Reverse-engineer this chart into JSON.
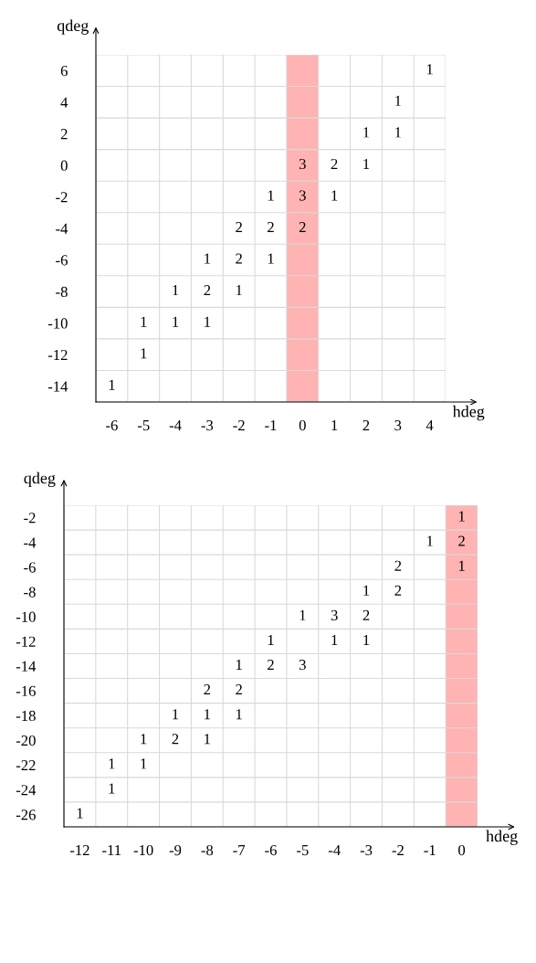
{
  "chart_data": [
    {
      "type": "heatmap",
      "xlabel": "hdeg",
      "ylabel": "qdeg",
      "grid": true,
      "data_labels": true,
      "categories": [
        "-6",
        "-5",
        "-4",
        "-3",
        "-2",
        "-1",
        "0",
        "1",
        "2",
        "3",
        "4"
      ],
      "y_categories": [
        "6",
        "4",
        "2",
        "0",
        "-2",
        "-4",
        "-6",
        "-8",
        "-10",
        "-12",
        "-14"
      ],
      "cells": [
        [
          null,
          null,
          null,
          null,
          null,
          null,
          null,
          null,
          null,
          null,
          1
        ],
        [
          null,
          null,
          null,
          null,
          null,
          null,
          null,
          null,
          null,
          1,
          null
        ],
        [
          null,
          null,
          null,
          null,
          null,
          null,
          null,
          null,
          1,
          1,
          null
        ],
        [
          null,
          null,
          null,
          null,
          null,
          null,
          3,
          2,
          1,
          null,
          null
        ],
        [
          null,
          null,
          null,
          null,
          null,
          1,
          3,
          1,
          null,
          null,
          null
        ],
        [
          null,
          null,
          null,
          null,
          2,
          2,
          2,
          null,
          null,
          null,
          null
        ],
        [
          null,
          null,
          null,
          1,
          2,
          1,
          null,
          null,
          null,
          null,
          null
        ],
        [
          null,
          null,
          1,
          2,
          1,
          null,
          null,
          null,
          null,
          null,
          null
        ],
        [
          null,
          1,
          1,
          1,
          null,
          null,
          null,
          null,
          null,
          null,
          null
        ],
        [
          null,
          1,
          null,
          null,
          null,
          null,
          null,
          null,
          null,
          null,
          null
        ],
        [
          1,
          null,
          null,
          null,
          null,
          null,
          null,
          null,
          null,
          null,
          null
        ]
      ],
      "bands": [
        {
          "axis": "x",
          "from": "0",
          "to": "0",
          "color": "#ffb3b3"
        }
      ]
    },
    {
      "type": "heatmap",
      "xlabel": "hdeg",
      "ylabel": "qdeg",
      "grid": true,
      "data_labels": true,
      "categories": [
        "-12",
        "-11",
        "-10",
        "-9",
        "-8",
        "-7",
        "-6",
        "-5",
        "-4",
        "-3",
        "-2",
        "-1",
        "0"
      ],
      "y_categories": [
        "-2",
        "-4",
        "-6",
        "-8",
        "-10",
        "-12",
        "-14",
        "-16",
        "-18",
        "-20",
        "-22",
        "-24",
        "-26"
      ],
      "cells": [
        [
          null,
          null,
          null,
          null,
          null,
          null,
          null,
          null,
          null,
          null,
          null,
          null,
          1
        ],
        [
          null,
          null,
          null,
          null,
          null,
          null,
          null,
          null,
          null,
          null,
          null,
          1,
          2
        ],
        [
          null,
          null,
          null,
          null,
          null,
          null,
          null,
          null,
          null,
          null,
          2,
          null,
          1
        ],
        [
          null,
          null,
          null,
          null,
          null,
          null,
          null,
          null,
          null,
          1,
          2,
          null,
          null
        ],
        [
          null,
          null,
          null,
          null,
          null,
          null,
          null,
          1,
          3,
          2,
          null,
          null,
          null
        ],
        [
          null,
          null,
          null,
          null,
          null,
          null,
          1,
          null,
          1,
          1,
          null,
          null,
          null
        ],
        [
          null,
          null,
          null,
          null,
          null,
          1,
          2,
          3,
          null,
          null,
          null,
          null,
          null
        ],
        [
          null,
          null,
          null,
          null,
          2,
          2,
          null,
          null,
          null,
          null,
          null,
          null,
          null
        ],
        [
          null,
          null,
          null,
          1,
          1,
          1,
          null,
          null,
          null,
          null,
          null,
          null,
          null
        ],
        [
          null,
          null,
          1,
          2,
          1,
          null,
          null,
          null,
          null,
          null,
          null,
          null,
          null
        ],
        [
          null,
          1,
          1,
          null,
          null,
          null,
          null,
          null,
          null,
          null,
          null,
          null,
          null
        ],
        [
          null,
          1,
          null,
          null,
          null,
          null,
          null,
          null,
          null,
          null,
          null,
          null,
          null
        ],
        [
          1,
          null,
          null,
          null,
          null,
          null,
          null,
          null,
          null,
          null,
          null,
          null,
          null
        ]
      ],
      "bands": [
        {
          "axis": "x",
          "from": "0",
          "to": "0",
          "color": "#ffb3b3"
        }
      ]
    }
  ]
}
